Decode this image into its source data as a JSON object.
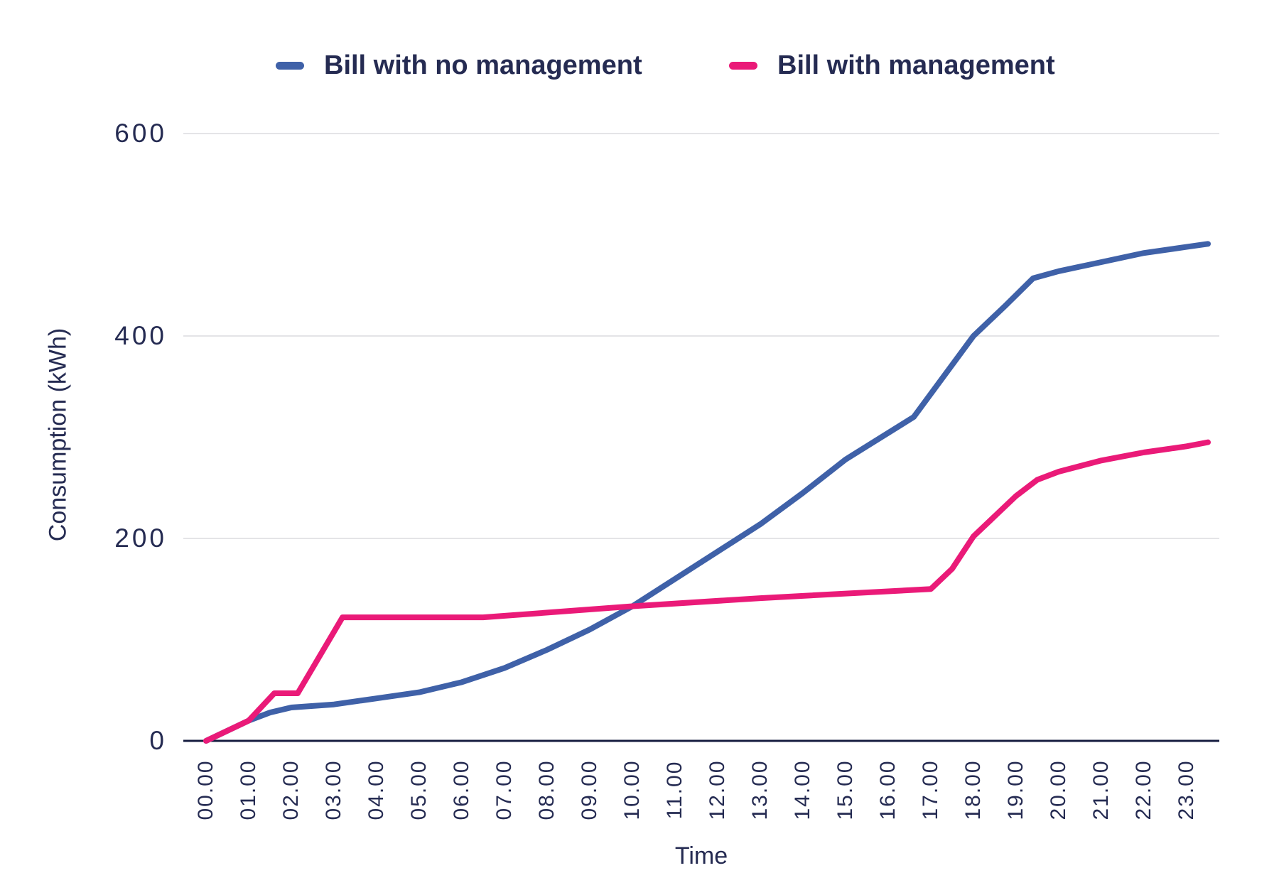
{
  "page": {
    "background": "#ffffff"
  },
  "legend": {
    "position": "top",
    "items": [
      {
        "label": "Bill with no management",
        "color": "#3f61a8"
      },
      {
        "label": "Bill with management",
        "color": "#ea1a78"
      }
    ]
  },
  "axes": {
    "x_title": "Time",
    "y_title": "Consumption (kWh)"
  },
  "colors": {
    "text": "#252b52",
    "grid": "#e4e4e7",
    "axis_line": "#161d40",
    "blue_series": "#3f61a8",
    "pink_series": "#ea1a78"
  },
  "chart_data": {
    "type": "line",
    "title": "",
    "xlabel": "Time",
    "ylabel": "Consumption (kWh)",
    "grid": "horizontal",
    "legend_position": "top",
    "ylim": [
      0,
      600
    ],
    "yticks": [
      0,
      200,
      400,
      600
    ],
    "x_tick_hours": [
      0,
      1,
      2,
      3,
      4,
      5,
      6,
      7,
      8,
      9,
      10,
      11,
      12,
      13,
      14,
      15,
      16,
      17,
      18,
      19,
      20,
      21,
      22,
      23
    ],
    "x_tick_labels": [
      "00.00",
      "01.00",
      "02.00",
      "03.00",
      "04.00",
      "05.00",
      "06.00",
      "07.00",
      "08.00",
      "09.00",
      "10.00",
      "11.00",
      "12.00",
      "13.00",
      "14.00",
      "15.00",
      "16.00",
      "17.00",
      "18.00",
      "19.00",
      "20.00",
      "21.00",
      "22.00",
      "23.00"
    ],
    "x_unit_hours": true,
    "series": [
      {
        "name": "Bill with no management",
        "color": "#3f61a8",
        "points": [
          [
            0,
            0
          ],
          [
            1,
            20
          ],
          [
            1.5,
            28
          ],
          [
            2,
            33
          ],
          [
            3,
            36
          ],
          [
            4,
            42
          ],
          [
            5,
            48
          ],
          [
            6,
            58
          ],
          [
            7,
            72
          ],
          [
            8,
            90
          ],
          [
            9,
            110
          ],
          [
            10,
            133
          ],
          [
            11,
            160
          ],
          [
            12,
            187
          ],
          [
            13,
            214
          ],
          [
            14,
            245
          ],
          [
            15,
            278
          ],
          [
            16.6,
            320
          ],
          [
            18,
            400
          ],
          [
            18.75,
            430
          ],
          [
            19.4,
            457
          ],
          [
            20,
            464
          ],
          [
            21,
            473
          ],
          [
            22,
            482
          ],
          [
            23,
            488
          ],
          [
            23.5,
            491
          ]
        ]
      },
      {
        "name": "Bill with management",
        "color": "#ea1a78",
        "points": [
          [
            0,
            0
          ],
          [
            1,
            20
          ],
          [
            1.6,
            47
          ],
          [
            2.15,
            47
          ],
          [
            3.2,
            122
          ],
          [
            6.5,
            122
          ],
          [
            10,
            133
          ],
          [
            13,
            141
          ],
          [
            17,
            150
          ],
          [
            17.5,
            170
          ],
          [
            18,
            202
          ],
          [
            19,
            242
          ],
          [
            19.5,
            258
          ],
          [
            20,
            266
          ],
          [
            21,
            277
          ],
          [
            22,
            285
          ],
          [
            23,
            291
          ],
          [
            23.5,
            295
          ]
        ]
      }
    ]
  }
}
